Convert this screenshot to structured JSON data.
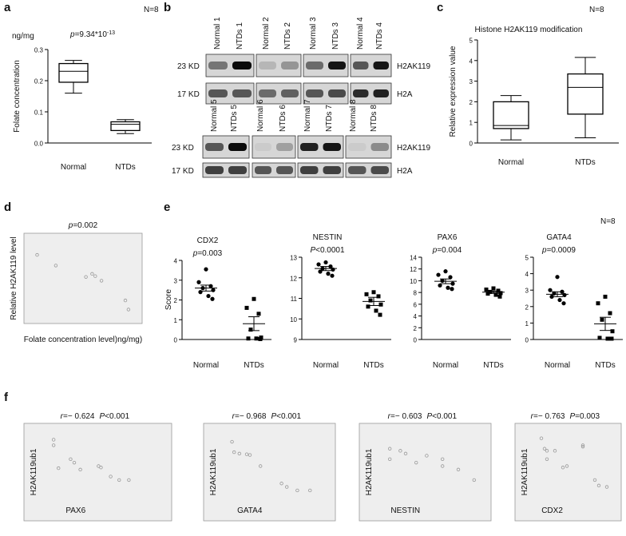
{
  "panel_b": {
    "panel": "b",
    "rows": [
      {
        "lanes": [
          "Normal 1",
          "NTDs 1",
          "Normal 2",
          "NTDs 2",
          "Normal 3",
          "NTDs 3",
          "Normal 4",
          "NTDs 4"
        ],
        "markers": [
          "23 KD",
          "17 KD"
        ],
        "proteins": [
          "H2AK119",
          "H2A"
        ]
      },
      {
        "lanes": [
          "Normal 5",
          "NTDs 5",
          "Normal 6",
          "NTDs 6",
          "Normal 7",
          "NTDs 7",
          "Normal 8",
          "NTDs 8"
        ],
        "markers": [
          "23 KD",
          "17 KD"
        ],
        "proteins": [
          "H2AK119",
          "H2A"
        ]
      }
    ]
  },
  "panel_e": {
    "panel": "e",
    "note": "N=8",
    "ylabel": "Score"
  },
  "panel_f": {
    "panel": "f"
  },
  "chart_data": [
    {
      "type": "box",
      "panel": "a",
      "note": "N=8",
      "unit": "ng/mg",
      "p_label": [
        "p",
        "=9.34*10",
        "-13"
      ],
      "ylabel": "Folate concentration",
      "categories": [
        "Normal",
        "NTDs"
      ],
      "boxes": [
        {
          "min": 0.16,
          "q1": 0.195,
          "median": 0.23,
          "q3": 0.255,
          "max": 0.265
        },
        {
          "min": 0.03,
          "q1": 0.04,
          "median": 0.06,
          "q3": 0.068,
          "max": 0.075
        }
      ],
      "color": "#000000",
      "ylim": [
        0,
        0.3
      ],
      "yticks": [
        {
          "value": 0,
          "label": "0.0"
        },
        0.1,
        0.2,
        0.3
      ]
    },
    {
      "type": "box",
      "panel": "c",
      "note": "N=8",
      "title": "Histone H2AK119 modification",
      "ylabel": "Relative expression value",
      "categories": [
        "Normal",
        "NTDs"
      ],
      "boxes": [
        {
          "min": 0.15,
          "q1": 0.7,
          "median": 0.85,
          "q3": 2.0,
          "max": 2.3
        },
        {
          "min": 0.25,
          "q1": 1.4,
          "median": 2.7,
          "q3": 3.35,
          "max": 4.15
        }
      ],
      "color": "#000000",
      "ylim": [
        0,
        5
      ],
      "yticks": [
        0,
        1,
        2,
        3,
        4,
        5
      ]
    },
    {
      "type": "scatter",
      "panel": "d",
      "p_label": [
        "p",
        "=0.002"
      ],
      "ylabel": "Relative H2AK119  level",
      "xlabel": "Folate concentration  level)ng/mg)",
      "x": [
        0.05,
        0.23,
        0.52,
        0.58,
        0.61,
        0.67,
        0.9,
        0.93
      ],
      "values": [
        0.82,
        0.68,
        0.53,
        0.57,
        0.54,
        0.48,
        0.22,
        0.1
      ],
      "xlim": [
        0,
        1
      ],
      "ylim": [
        0,
        1
      ],
      "color": "#999999",
      "background": "#eeeeee"
    },
    {
      "type": "dot",
      "title": "CDX2",
      "p_label": [
        "p",
        "=0.003"
      ],
      "categories": [
        "Normal",
        "NTDs"
      ],
      "groups": [
        {
          "values": [
            3.55,
            2.9,
            2.7,
            2.6,
            2.5,
            2.4,
            2.2,
            2.05
          ],
          "mean": 2.6,
          "sem": 0.15
        },
        {
          "values": [
            2.05,
            1.6,
            1.3,
            0.5,
            0.1,
            0.05,
            0.05,
            0.02
          ],
          "mean": 0.8,
          "sem": 0.35
        }
      ],
      "ylim": [
        0,
        4
      ],
      "yticks": [
        0,
        1,
        2,
        3,
        4
      ]
    },
    {
      "type": "dot",
      "title": "NESTIN",
      "p_label": [
        "P",
        "<0.0001"
      ],
      "categories": [
        "Normal",
        "NTDs"
      ],
      "groups": [
        {
          "values": [
            12.75,
            12.65,
            12.55,
            12.45,
            12.4,
            12.3,
            12.2,
            12.1
          ],
          "mean": 12.45,
          "sem": 0.1
        },
        {
          "values": [
            11.3,
            11.2,
            11.1,
            10.9,
            10.7,
            10.6,
            10.4,
            10.2
          ],
          "mean": 10.85,
          "sem": 0.2
        }
      ],
      "ylim": [
        9,
        13
      ],
      "yticks": [
        9,
        10,
        11,
        12,
        13
      ]
    },
    {
      "type": "dot",
      "title": "PAX6",
      "p_label": [
        "p",
        "=0.004"
      ],
      "categories": [
        "Normal",
        "NTDs"
      ],
      "groups": [
        {
          "values": [
            11.6,
            11.0,
            10.6,
            10.0,
            9.5,
            9.2,
            8.8,
            8.6
          ],
          "mean": 9.9,
          "sem": 0.4
        },
        {
          "values": [
            8.7,
            8.5,
            8.3,
            8.1,
            7.9,
            7.8,
            7.6,
            7.3
          ],
          "mean": 8.05,
          "sem": 0.2
        }
      ],
      "ylim": [
        0,
        14
      ],
      "yticks": [
        0,
        2,
        4,
        6,
        8,
        10,
        12,
        14
      ]
    },
    {
      "type": "dot",
      "title": "GATA4",
      "p_label": [
        "p",
        "=0.0009"
      ],
      "categories": [
        "Normal",
        "NTDs"
      ],
      "groups": [
        {
          "values": [
            3.8,
            3.0,
            2.9,
            2.8,
            2.7,
            2.6,
            2.4,
            2.2
          ],
          "mean": 2.75,
          "sem": 0.15
        },
        {
          "values": [
            2.6,
            2.2,
            1.6,
            1.2,
            0.5,
            0.1,
            0.05,
            0.05
          ],
          "mean": 0.95,
          "sem": 0.4
        }
      ],
      "ylim": [
        0,
        5
      ],
      "yticks": [
        0,
        1,
        2,
        3,
        4,
        5
      ]
    },
    {
      "type": "scatter",
      "r_label": [
        "r",
        "=− 0.624"
      ],
      "p_label": [
        "P",
        "<0.001"
      ],
      "ylabel": "H2AK119ub1",
      "xlabel": "PAX6",
      "x": [
        0.08,
        0.08,
        0.12,
        0.22,
        0.25,
        0.3,
        0.45,
        0.47,
        0.55,
        0.62,
        0.7
      ],
      "values": [
        0.88,
        0.8,
        0.47,
        0.6,
        0.55,
        0.45,
        0.5,
        0.48,
        0.35,
        0.3,
        0.3
      ],
      "xlim": [
        0,
        1
      ],
      "ylim": [
        0,
        1
      ],
      "color": "#999999",
      "background": "#eeeeee"
    },
    {
      "type": "scatter",
      "r_label": [
        "r",
        "=− 0.968"
      ],
      "p_label": [
        "P",
        "<0.001"
      ],
      "ylabel": "H2AK119ub1",
      "xlabel": "GATA4",
      "x": [
        0.08,
        0.1,
        0.15,
        0.22,
        0.25,
        0.35,
        0.55,
        0.6,
        0.7,
        0.82
      ],
      "values": [
        0.85,
        0.7,
        0.68,
        0.67,
        0.66,
        0.5,
        0.25,
        0.2,
        0.15,
        0.15
      ],
      "xlim": [
        0,
        1
      ],
      "ylim": [
        0,
        1
      ],
      "color": "#999999",
      "background": "#eeeeee"
    },
    {
      "type": "scatter",
      "r_label": [
        "r",
        "=− 0.603"
      ],
      "p_label": [
        "P",
        "<0.001"
      ],
      "ylabel": "H2AK119ub1",
      "xlabel": "NESTIN",
      "x": [
        0.1,
        0.1,
        0.2,
        0.25,
        0.35,
        0.45,
        0.6,
        0.6,
        0.75,
        0.9
      ],
      "values": [
        0.75,
        0.6,
        0.72,
        0.68,
        0.55,
        0.65,
        0.6,
        0.5,
        0.45,
        0.3
      ],
      "xlim": [
        0,
        1
      ],
      "ylim": [
        0,
        1
      ],
      "color": "#999999",
      "background": "#eeeeee"
    },
    {
      "type": "scatter",
      "r_label": [
        "r",
        "=− 0.763"
      ],
      "p_label": [
        "P",
        "=0.003"
      ],
      "ylabel": "H2AK119ub1",
      "xlabel": "CDX2",
      "x": [
        0.08,
        0.12,
        0.15,
        0.15,
        0.25,
        0.35,
        0.4,
        0.6,
        0.6,
        0.75,
        0.8,
        0.9
      ],
      "values": [
        0.9,
        0.75,
        0.72,
        0.6,
        0.72,
        0.48,
        0.5,
        0.8,
        0.78,
        0.3,
        0.22,
        0.2
      ],
      "xlim": [
        0,
        1
      ],
      "ylim": [
        0,
        1
      ],
      "color": "#999999",
      "background": "#eeeeee"
    }
  ]
}
